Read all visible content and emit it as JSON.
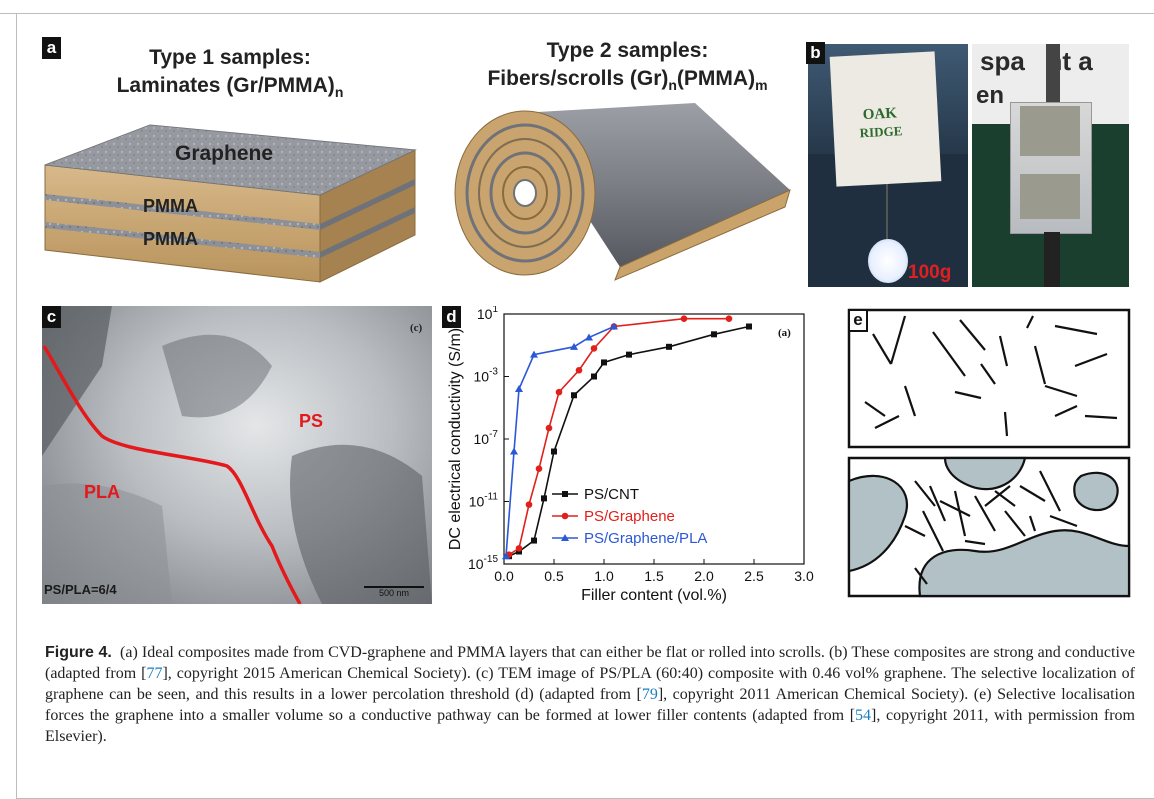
{
  "panel_labels": {
    "a": "a",
    "b": "b",
    "c": "c",
    "d": "d",
    "e": "e"
  },
  "panel_a": {
    "type1_title": "Type 1 samples:",
    "type1_subtitle": "Laminates (Gr/PMMA)",
    "type1_sub_n": "n",
    "type2_title": "Type 2 samples:",
    "type2_subtitle": "Fibers/scrolls (Gr)",
    "type2_sub_n": "n",
    "type2_mid": "(PMMA)",
    "type2_sub_m": "m",
    "layer_graphene": "Graphene",
    "layer_pmma_1": "PMMA",
    "layer_pmma_2": "PMMA"
  },
  "panel_b": {
    "weight_label": "100g",
    "sign_text_1": "OAK",
    "sign_text_2": "RIDGE",
    "sign_caption": "spa   nt a",
    "sign_caption2": "en"
  },
  "panel_c": {
    "label_ps": "PS",
    "label_pla": "PLA",
    "corner_mark": "(c)",
    "ratio_text": "PS/PLA=6/4",
    "scale_bar": "500 nm"
  },
  "chart_data": {
    "type": "line",
    "ylabel": "DC electrical conductivity (S/m)",
    "xlabel": "Filler content (vol.%)",
    "xlim": [
      0,
      3.0
    ],
    "ylim_log10": [
      -15,
      1
    ],
    "x_ticks": [
      "0.0",
      "0.5",
      "1.0",
      "1.5",
      "2.0",
      "2.5",
      "3.0"
    ],
    "y_ticks": [
      {
        "base": "10",
        "exp": "1",
        "value": 1
      },
      {
        "base": "10",
        "exp": "-3",
        "value": -3
      },
      {
        "base": "10",
        "exp": "-7",
        "value": -7
      },
      {
        "base": "10",
        "exp": "-11",
        "value": -11
      },
      {
        "base": "10",
        "exp": "-15",
        "value": -15
      }
    ],
    "y_scale": "log",
    "inner_label": "(a)",
    "legend_placement": "bottom-center",
    "series": [
      {
        "name": "PS/CNT",
        "color": "#111111",
        "marker": "square",
        "x": [
          0.05,
          0.15,
          0.3,
          0.4,
          0.5,
          0.7,
          0.9,
          1.0,
          1.25,
          1.65,
          2.1,
          2.45
        ],
        "log_y": [
          -14.5,
          -14.2,
          -13.5,
          -10.8,
          -7.8,
          -4.2,
          -3.0,
          -2.1,
          -1.6,
          -1.1,
          -0.3,
          0.2
        ]
      },
      {
        "name": "PS/Graphene",
        "color": "#e0201b",
        "marker": "circle",
        "x": [
          0.05,
          0.15,
          0.25,
          0.35,
          0.45,
          0.55,
          0.75,
          0.9,
          1.1,
          1.8,
          2.25
        ],
        "log_y": [
          -14.4,
          -14.0,
          -11.2,
          -8.9,
          -6.3,
          -4.0,
          -2.6,
          -1.2,
          0.2,
          0.7,
          0.7
        ]
      },
      {
        "name": "PS/Graphene/PLA",
        "color": "#2b58d6",
        "marker": "triangle",
        "x": [
          0.02,
          0.1,
          0.15,
          0.3,
          0.7,
          0.85,
          1.1
        ],
        "log_y": [
          -14.5,
          -7.8,
          -3.8,
          -1.6,
          -1.1,
          -0.5,
          0.2
        ]
      }
    ]
  },
  "caption": {
    "lead": "Figure 4.",
    "part1": "(a) Ideal composites made from CVD-graphene and PMMA layers that can either be flat or rolled into scrolls. (b) These composites are strong and conductive (adapted from [",
    "ref1": "77",
    "part2": "], copyright 2015 American Chemical Society). (c) TEM image of PS/PLA (60:40) composite with 0.46 vol% graphene. The selective localization of graphene can be seen, and this results in a lower percolation threshold (d) (adapted from [",
    "ref2": "79",
    "part3": "], copyright 2011 American Chemical Society). (e) Selective localisation forces the graphene into a smaller volume so a conductive pathway can be formed at lower filler contents (adapted from [",
    "ref3": "54",
    "part4": "], copyright 2011, with permission from Elsevier)."
  }
}
